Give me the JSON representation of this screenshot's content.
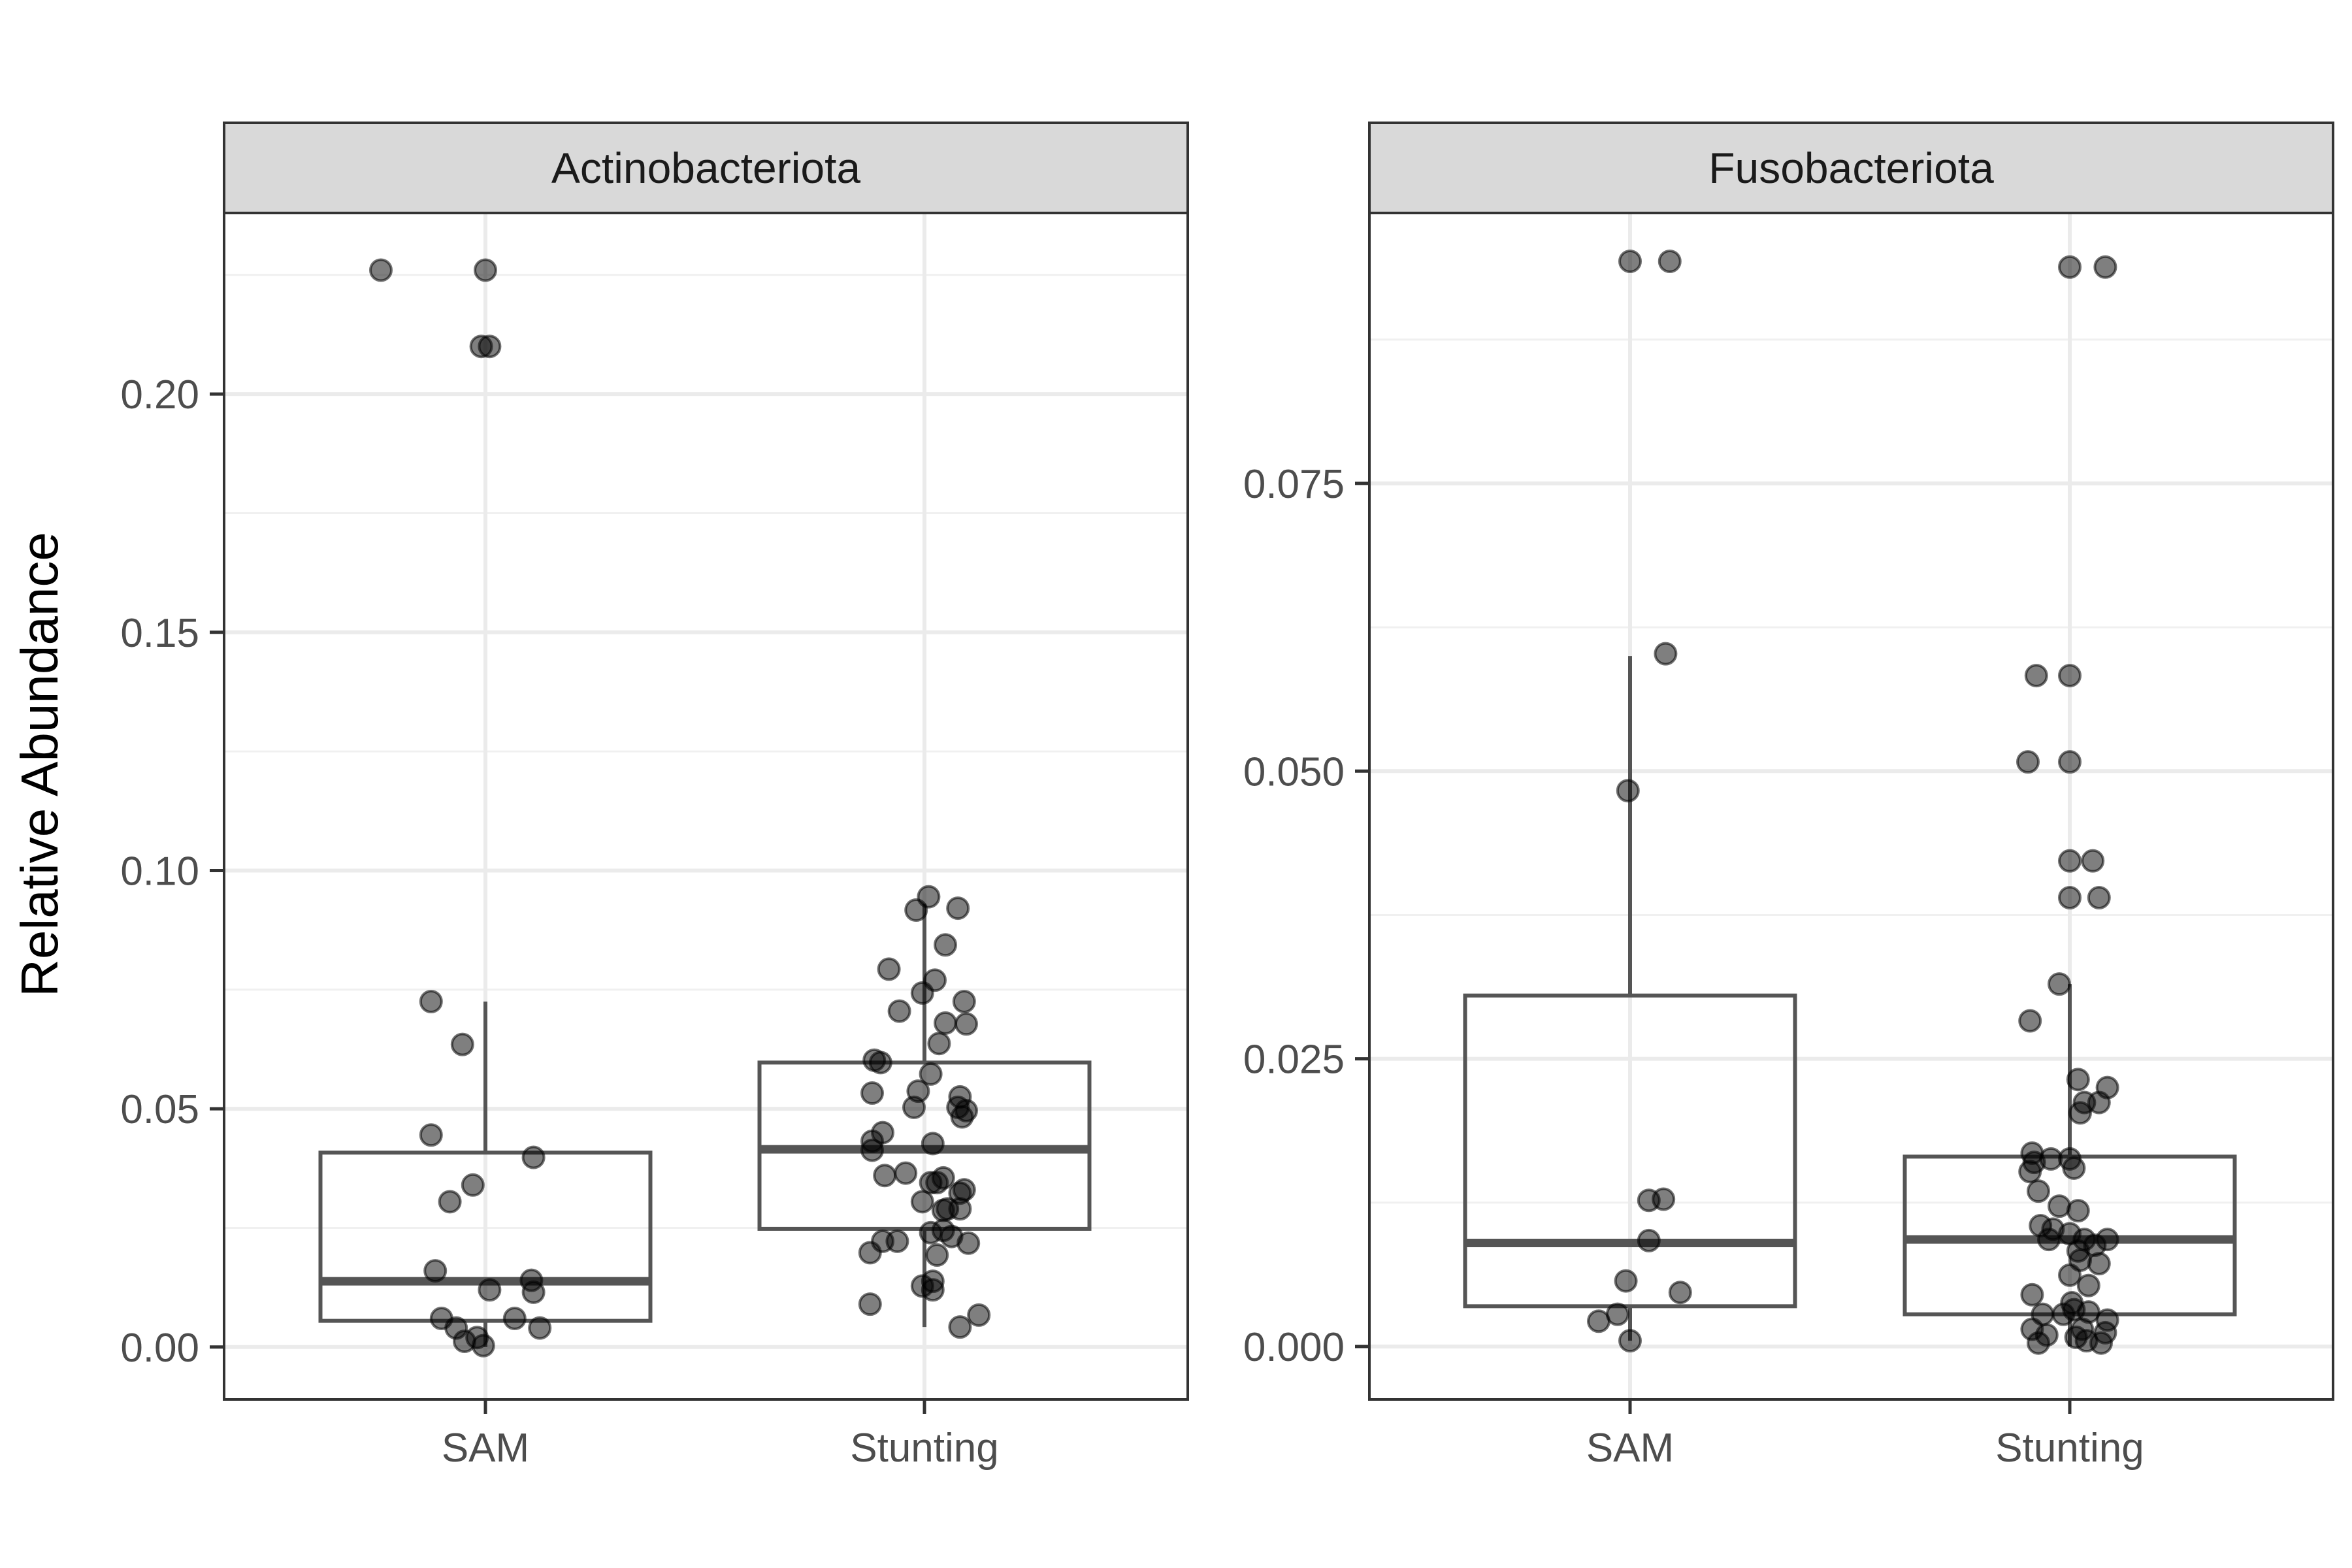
{
  "y_axis_label": "Relative Abundance",
  "chart_data": [
    {
      "type": "boxplot",
      "title": "Actinobacteriota",
      "ylabel": "Relative Abundance",
      "categories": [
        "SAM",
        "Stunting"
      ],
      "ylim": [
        -0.011,
        0.238
      ],
      "yticks": [
        0.0,
        0.05,
        0.1,
        0.15,
        0.2
      ],
      "ytick_labels": [
        "0.00",
        "0.05",
        "0.10",
        "0.15",
        "0.20"
      ],
      "grid": true,
      "boxes": [
        {
          "name": "SAM",
          "q1": 0.0055,
          "median": 0.0138,
          "q3": 0.0408,
          "whisker_low": 0.0,
          "whisker_high": 0.0725
        },
        {
          "name": "Stunting",
          "q1": 0.0248,
          "median": 0.0415,
          "q3": 0.0597,
          "whisker_low": 0.0042,
          "whisker_high": 0.093
        }
      ],
      "points": [
        {
          "category": "SAM",
          "jitter": -0.5,
          "value": 0.226
        },
        {
          "category": "SAM",
          "jitter": 0.0,
          "value": 0.226
        },
        {
          "category": "SAM",
          "jitter": -0.02,
          "value": 0.21
        },
        {
          "category": "SAM",
          "jitter": 0.02,
          "value": 0.21
        },
        {
          "category": "SAM",
          "jitter": -0.26,
          "value": 0.0725
        },
        {
          "category": "SAM",
          "jitter": -0.11,
          "value": 0.0635
        },
        {
          "category": "SAM",
          "jitter": -0.26,
          "value": 0.0445
        },
        {
          "category": "SAM",
          "jitter": 0.23,
          "value": 0.0398
        },
        {
          "category": "SAM",
          "jitter": -0.06,
          "value": 0.034
        },
        {
          "category": "SAM",
          "jitter": -0.17,
          "value": 0.0305
        },
        {
          "category": "SAM",
          "jitter": -0.24,
          "value": 0.016
        },
        {
          "category": "SAM",
          "jitter": 0.22,
          "value": 0.014
        },
        {
          "category": "SAM",
          "jitter": 0.23,
          "value": 0.0115
        },
        {
          "category": "SAM",
          "jitter": 0.02,
          "value": 0.012
        },
        {
          "category": "SAM",
          "jitter": -0.21,
          "value": 0.006
        },
        {
          "category": "SAM",
          "jitter": 0.14,
          "value": 0.006
        },
        {
          "category": "SAM",
          "jitter": -0.14,
          "value": 0.004
        },
        {
          "category": "SAM",
          "jitter": 0.26,
          "value": 0.004
        },
        {
          "category": "SAM",
          "jitter": -0.1,
          "value": 0.0012
        },
        {
          "category": "SAM",
          "jitter": -0.04,
          "value": 0.002
        },
        {
          "category": "SAM",
          "jitter": -0.01,
          "value": 0.0003
        },
        {
          "category": "Stunting",
          "jitter": 0.02,
          "value": 0.0945
        },
        {
          "category": "Stunting",
          "jitter": -0.04,
          "value": 0.0917
        },
        {
          "category": "Stunting",
          "jitter": 0.16,
          "value": 0.0921
        },
        {
          "category": "Stunting",
          "jitter": 0.1,
          "value": 0.0844
        },
        {
          "category": "Stunting",
          "jitter": -0.17,
          "value": 0.0793
        },
        {
          "category": "Stunting",
          "jitter": 0.05,
          "value": 0.077
        },
        {
          "category": "Stunting",
          "jitter": -0.01,
          "value": 0.0743
        },
        {
          "category": "Stunting",
          "jitter": 0.19,
          "value": 0.0725
        },
        {
          "category": "Stunting",
          "jitter": -0.12,
          "value": 0.0705
        },
        {
          "category": "Stunting",
          "jitter": 0.1,
          "value": 0.068
        },
        {
          "category": "Stunting",
          "jitter": 0.2,
          "value": 0.0678
        },
        {
          "category": "Stunting",
          "jitter": 0.07,
          "value": 0.0637
        },
        {
          "category": "Stunting",
          "jitter": -0.24,
          "value": 0.0602
        },
        {
          "category": "Stunting",
          "jitter": -0.21,
          "value": 0.0597
        },
        {
          "category": "Stunting",
          "jitter": 0.03,
          "value": 0.0573
        },
        {
          "category": "Stunting",
          "jitter": -0.25,
          "value": 0.0533
        },
        {
          "category": "Stunting",
          "jitter": -0.03,
          "value": 0.0537
        },
        {
          "category": "Stunting",
          "jitter": 0.17,
          "value": 0.0525
        },
        {
          "category": "Stunting",
          "jitter": -0.05,
          "value": 0.0503
        },
        {
          "category": "Stunting",
          "jitter": 0.16,
          "value": 0.0503
        },
        {
          "category": "Stunting",
          "jitter": 0.2,
          "value": 0.0496
        },
        {
          "category": "Stunting",
          "jitter": 0.18,
          "value": 0.0483
        },
        {
          "category": "Stunting",
          "jitter": -0.2,
          "value": 0.045
        },
        {
          "category": "Stunting",
          "jitter": -0.25,
          "value": 0.0432
        },
        {
          "category": "Stunting",
          "jitter": 0.04,
          "value": 0.0427
        },
        {
          "category": "Stunting",
          "jitter": -0.25,
          "value": 0.0413
        },
        {
          "category": "Stunting",
          "jitter": -0.09,
          "value": 0.0365
        },
        {
          "category": "Stunting",
          "jitter": -0.19,
          "value": 0.036
        },
        {
          "category": "Stunting",
          "jitter": 0.09,
          "value": 0.0355
        },
        {
          "category": "Stunting",
          "jitter": 0.03,
          "value": 0.0345
        },
        {
          "category": "Stunting",
          "jitter": 0.06,
          "value": 0.0345
        },
        {
          "category": "Stunting",
          "jitter": 0.19,
          "value": 0.033
        },
        {
          "category": "Stunting",
          "jitter": 0.17,
          "value": 0.0323
        },
        {
          "category": "Stunting",
          "jitter": -0.01,
          "value": 0.0305
        },
        {
          "category": "Stunting",
          "jitter": 0.11,
          "value": 0.029
        },
        {
          "category": "Stunting",
          "jitter": 0.09,
          "value": 0.0287
        },
        {
          "category": "Stunting",
          "jitter": 0.17,
          "value": 0.029
        },
        {
          "category": "Stunting",
          "jitter": 0.03,
          "value": 0.024
        },
        {
          "category": "Stunting",
          "jitter": 0.09,
          "value": 0.0245
        },
        {
          "category": "Stunting",
          "jitter": 0.13,
          "value": 0.0232
        },
        {
          "category": "Stunting",
          "jitter": -0.2,
          "value": 0.0222
        },
        {
          "category": "Stunting",
          "jitter": -0.13,
          "value": 0.0222
        },
        {
          "category": "Stunting",
          "jitter": 0.21,
          "value": 0.0218
        },
        {
          "category": "Stunting",
          "jitter": -0.26,
          "value": 0.0198
        },
        {
          "category": "Stunting",
          "jitter": 0.06,
          "value": 0.0193
        },
        {
          "category": "Stunting",
          "jitter": -0.01,
          "value": 0.0128
        },
        {
          "category": "Stunting",
          "jitter": 0.04,
          "value": 0.0138
        },
        {
          "category": "Stunting",
          "jitter": 0.04,
          "value": 0.012
        },
        {
          "category": "Stunting",
          "jitter": -0.26,
          "value": 0.009
        },
        {
          "category": "Stunting",
          "jitter": 0.26,
          "value": 0.0067
        },
        {
          "category": "Stunting",
          "jitter": 0.17,
          "value": 0.0042
        }
      ]
    },
    {
      "type": "boxplot",
      "title": "Fusobacteriota",
      "ylabel": "",
      "categories": [
        "SAM",
        "Stunting"
      ],
      "ylim": [
        -0.0046,
        0.0985
      ],
      "yticks": [
        0.0,
        0.025,
        0.05,
        0.075
      ],
      "ytick_labels": [
        "0.000",
        "0.025",
        "0.050",
        "0.075"
      ],
      "grid": true,
      "boxes": [
        {
          "name": "SAM",
          "q1": 0.0035,
          "median": 0.009,
          "q3": 0.0305,
          "whisker_low": 0.0005,
          "whisker_high": 0.06
        },
        {
          "name": "Stunting",
          "q1": 0.0028,
          "median": 0.0093,
          "q3": 0.0165,
          "whisker_low": 0.0,
          "whisker_high": 0.0315
        }
      ],
      "points": [
        {
          "category": "SAM",
          "jitter": 0.0,
          "value": 0.0943
        },
        {
          "category": "SAM",
          "jitter": 0.19,
          "value": 0.0943
        },
        {
          "category": "SAM",
          "jitter": 0.17,
          "value": 0.0602
        },
        {
          "category": "SAM",
          "jitter": -0.01,
          "value": 0.0483
        },
        {
          "category": "SAM",
          "jitter": 0.09,
          "value": 0.0127
        },
        {
          "category": "SAM",
          "jitter": 0.16,
          "value": 0.0128
        },
        {
          "category": "SAM",
          "jitter": 0.09,
          "value": 0.0092
        },
        {
          "category": "SAM",
          "jitter": -0.02,
          "value": 0.0057
        },
        {
          "category": "SAM",
          "jitter": 0.24,
          "value": 0.0047
        },
        {
          "category": "SAM",
          "jitter": -0.06,
          "value": 0.0028
        },
        {
          "category": "SAM",
          "jitter": -0.15,
          "value": 0.0022
        },
        {
          "category": "SAM",
          "jitter": 0.0,
          "value": 0.0005
        },
        {
          "category": "Stunting",
          "jitter": 0.0,
          "value": 0.0938
        },
        {
          "category": "Stunting",
          "jitter": 0.17,
          "value": 0.0938
        },
        {
          "category": "Stunting",
          "jitter": -0.16,
          "value": 0.0583
        },
        {
          "category": "Stunting",
          "jitter": 0.0,
          "value": 0.0583
        },
        {
          "category": "Stunting",
          "jitter": -0.2,
          "value": 0.0508
        },
        {
          "category": "Stunting",
          "jitter": 0.0,
          "value": 0.0508
        },
        {
          "category": "Stunting",
          "jitter": 0.0,
          "value": 0.0422
        },
        {
          "category": "Stunting",
          "jitter": 0.11,
          "value": 0.0422
        },
        {
          "category": "Stunting",
          "jitter": 0.0,
          "value": 0.039
        },
        {
          "category": "Stunting",
          "jitter": 0.14,
          "value": 0.039
        },
        {
          "category": "Stunting",
          "jitter": -0.05,
          "value": 0.0315
        },
        {
          "category": "Stunting",
          "jitter": -0.19,
          "value": 0.0283
        },
        {
          "category": "Stunting",
          "jitter": 0.04,
          "value": 0.0232
        },
        {
          "category": "Stunting",
          "jitter": 0.18,
          "value": 0.0225
        },
        {
          "category": "Stunting",
          "jitter": 0.07,
          "value": 0.0212
        },
        {
          "category": "Stunting",
          "jitter": 0.14,
          "value": 0.0212
        },
        {
          "category": "Stunting",
          "jitter": 0.05,
          "value": 0.0203
        },
        {
          "category": "Stunting",
          "jitter": -0.18,
          "value": 0.0168
        },
        {
          "category": "Stunting",
          "jitter": -0.17,
          "value": 0.016
        },
        {
          "category": "Stunting",
          "jitter": -0.09,
          "value": 0.0163
        },
        {
          "category": "Stunting",
          "jitter": 0.0,
          "value": 0.0163
        },
        {
          "category": "Stunting",
          "jitter": 0.02,
          "value": 0.0155
        },
        {
          "category": "Stunting",
          "jitter": -0.19,
          "value": 0.0152
        },
        {
          "category": "Stunting",
          "jitter": -0.15,
          "value": 0.0135
        },
        {
          "category": "Stunting",
          "jitter": -0.05,
          "value": 0.0122
        },
        {
          "category": "Stunting",
          "jitter": 0.04,
          "value": 0.0118
        },
        {
          "category": "Stunting",
          "jitter": -0.14,
          "value": 0.0105
        },
        {
          "category": "Stunting",
          "jitter": -0.08,
          "value": 0.0102
        },
        {
          "category": "Stunting",
          "jitter": 0.0,
          "value": 0.0098
        },
        {
          "category": "Stunting",
          "jitter": -0.1,
          "value": 0.0093
        },
        {
          "category": "Stunting",
          "jitter": 0.07,
          "value": 0.0093
        },
        {
          "category": "Stunting",
          "jitter": 0.18,
          "value": 0.0093
        },
        {
          "category": "Stunting",
          "jitter": 0.12,
          "value": 0.0088
        },
        {
          "category": "Stunting",
          "jitter": 0.04,
          "value": 0.0083
        },
        {
          "category": "Stunting",
          "jitter": 0.05,
          "value": 0.0075
        },
        {
          "category": "Stunting",
          "jitter": 0.14,
          "value": 0.0072
        },
        {
          "category": "Stunting",
          "jitter": 0.0,
          "value": 0.0062
        },
        {
          "category": "Stunting",
          "jitter": 0.09,
          "value": 0.0053
        },
        {
          "category": "Stunting",
          "jitter": -0.18,
          "value": 0.0045
        },
        {
          "category": "Stunting",
          "jitter": 0.01,
          "value": 0.0038
        },
        {
          "category": "Stunting",
          "jitter": -0.13,
          "value": 0.0028
        },
        {
          "category": "Stunting",
          "jitter": -0.03,
          "value": 0.0028
        },
        {
          "category": "Stunting",
          "jitter": 0.02,
          "value": 0.0032
        },
        {
          "category": "Stunting",
          "jitter": 0.09,
          "value": 0.003
        },
        {
          "category": "Stunting",
          "jitter": 0.18,
          "value": 0.0023
        },
        {
          "category": "Stunting",
          "jitter": -0.18,
          "value": 0.0015
        },
        {
          "category": "Stunting",
          "jitter": -0.11,
          "value": 0.001
        },
        {
          "category": "Stunting",
          "jitter": -0.15,
          "value": 0.0003
        },
        {
          "category": "Stunting",
          "jitter": 0.03,
          "value": 0.0008
        },
        {
          "category": "Stunting",
          "jitter": 0.06,
          "value": 0.0015
        },
        {
          "category": "Stunting",
          "jitter": 0.08,
          "value": 0.0005
        },
        {
          "category": "Stunting",
          "jitter": 0.15,
          "value": 0.0003
        },
        {
          "category": "Stunting",
          "jitter": 0.17,
          "value": 0.0012
        }
      ]
    }
  ]
}
